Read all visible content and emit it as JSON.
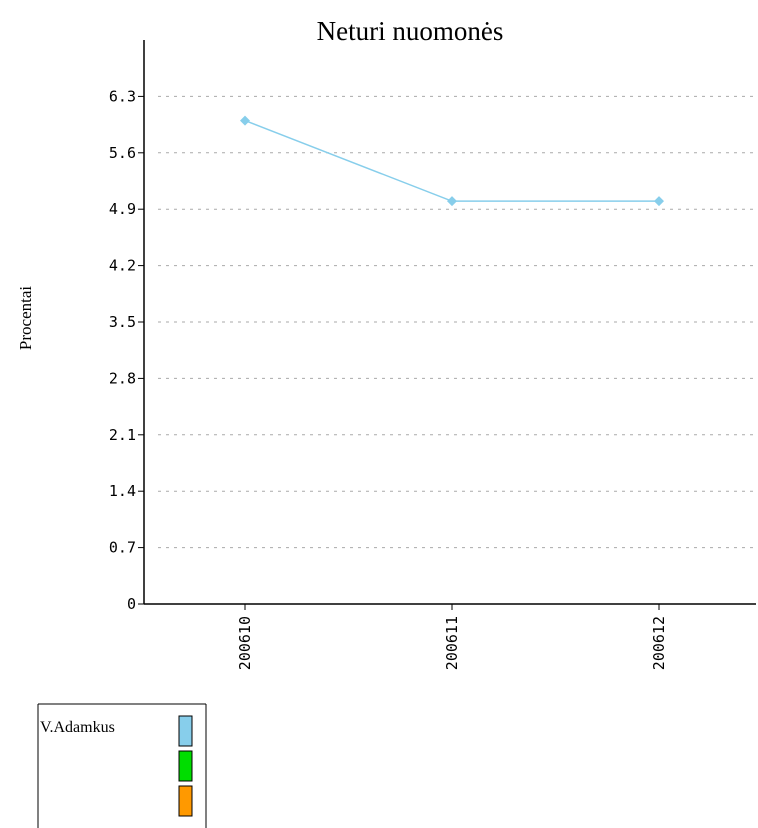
{
  "chart_data": {
    "type": "line",
    "title": "Neturi nuomonės",
    "xlabel": "",
    "ylabel": "Procentai",
    "categories": [
      "200610",
      "200611",
      "200612"
    ],
    "yticks": [
      "0",
      "0.7",
      "1.4",
      "2.1",
      "2.8",
      "3.5",
      "4.2",
      "4.9",
      "5.6",
      "6.3"
    ],
    "ylim": [
      0,
      7.0
    ],
    "grid": true,
    "series": [
      {
        "name": "V.Adamkus",
        "values": [
          6.0,
          5.0,
          5.0
        ],
        "color": "#87CEEB"
      }
    ],
    "legend": {
      "placement": "bottom-left",
      "entries": [
        {
          "label": "V.Adamkus",
          "color": "#87CEEB"
        },
        {
          "label": "",
          "color": "#00DD00"
        },
        {
          "label": "",
          "color": "#FF9900"
        }
      ]
    }
  }
}
